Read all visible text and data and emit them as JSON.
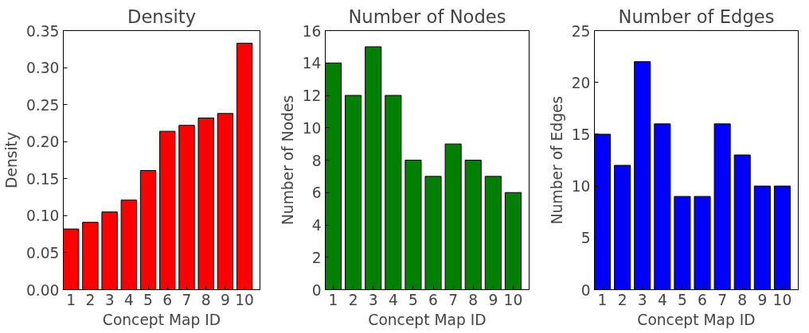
{
  "chart_data": [
    {
      "type": "bar",
      "title": "Density",
      "xlabel": "Concept Map ID",
      "ylabel": "Density",
      "categories": [
        "1",
        "2",
        "3",
        "4",
        "5",
        "6",
        "7",
        "8",
        "9",
        "10"
      ],
      "values": [
        0.082,
        0.091,
        0.105,
        0.121,
        0.161,
        0.214,
        0.222,
        0.232,
        0.238,
        0.333
      ],
      "color": "#ff0000",
      "ylim": [
        0,
        0.35
      ],
      "yticks": [
        {
          "value": 0,
          "label": "0.00"
        },
        {
          "value": 0.05,
          "label": "0.05"
        },
        {
          "value": 0.1,
          "label": "0.10"
        },
        {
          "value": 0.15,
          "label": "0.15"
        },
        {
          "value": 0.2,
          "label": "0.20"
        },
        {
          "value": 0.25,
          "label": "0.25"
        },
        {
          "value": 0.3,
          "label": "0.30"
        },
        {
          "value": 0.35,
          "label": "0.35"
        }
      ],
      "grid": false
    },
    {
      "type": "bar",
      "title": "Number of Nodes",
      "xlabel": "Concept Map ID",
      "ylabel": "Number of Nodes",
      "categories": [
        "1",
        "2",
        "3",
        "4",
        "5",
        "6",
        "7",
        "8",
        "9",
        "10"
      ],
      "values": [
        14,
        12,
        15,
        12,
        8,
        7,
        9,
        8,
        7,
        6
      ],
      "color": "#008000",
      "ylim": [
        0,
        16
      ],
      "yticks": [
        0,
        2,
        4,
        6,
        8,
        10,
        12,
        14,
        16
      ],
      "grid": false
    },
    {
      "type": "bar",
      "title": "Number of Edges",
      "xlabel": "Concept Map ID",
      "ylabel": "Number of Edges",
      "categories": [
        "1",
        "2",
        "3",
        "4",
        "5",
        "6",
        "7",
        "8",
        "9",
        "10"
      ],
      "values": [
        15,
        12,
        22,
        16,
        9,
        9,
        16,
        13,
        10,
        10
      ],
      "color": "#0000ff",
      "ylim": [
        0,
        25
      ],
      "yticks": [
        0,
        5,
        10,
        15,
        20,
        25
      ],
      "grid": false
    }
  ]
}
